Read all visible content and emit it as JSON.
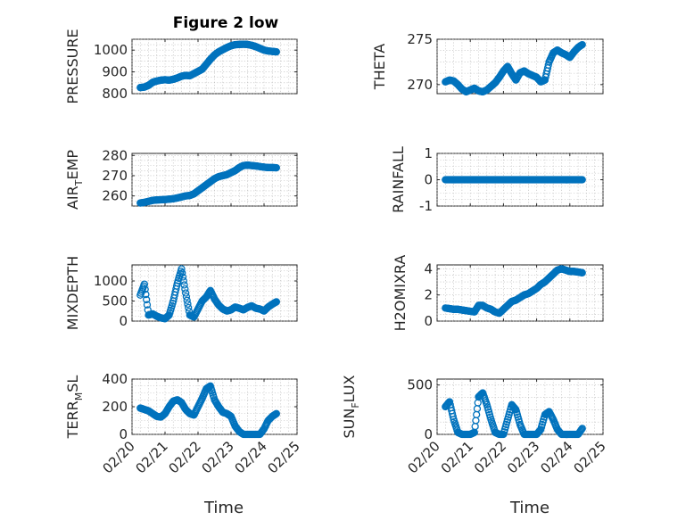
{
  "figure": {
    "title": "Figure 2 low",
    "xlabel": "Time",
    "marker_color": "#0072BD"
  },
  "chart_data": [
    {
      "type": "scatter",
      "panel": "pressure",
      "ylabel": "PRESSURE",
      "xlim": [
        "02/20",
        "02/25"
      ],
      "ylim": [
        800,
        1050
      ],
      "yticks": [
        800,
        900,
        1000
      ],
      "xticklabels_shown": false,
      "grid": true,
      "minor_grid": true,
      "title": "Figure 2 low",
      "x": [
        "02/20 06:00",
        "02/20 09:00",
        "02/20 12:00",
        "02/20 15:00",
        "02/20 18:00",
        "02/20 21:00",
        "02/21 00:00",
        "02/21 03:00",
        "02/21 06:00",
        "02/21 09:00",
        "02/21 12:00",
        "02/21 15:00",
        "02/21 18:00",
        "02/21 21:00",
        "02/22 00:00",
        "02/22 03:00",
        "02/22 06:00",
        "02/22 09:00",
        "02/22 12:00",
        "02/22 15:00",
        "02/22 18:00",
        "02/22 21:00",
        "02/23 00:00",
        "02/23 03:00",
        "02/23 06:00",
        "02/23 09:00",
        "02/23 12:00",
        "02/23 15:00",
        "02/23 18:00",
        "02/23 21:00",
        "02/24 00:00",
        "02/24 03:00",
        "02/24 06:00",
        "02/24 09:00"
      ],
      "y": [
        828,
        830,
        838,
        852,
        858,
        862,
        864,
        862,
        866,
        872,
        880,
        884,
        882,
        892,
        902,
        912,
        935,
        958,
        978,
        992,
        1002,
        1012,
        1020,
        1025,
        1026,
        1027,
        1026,
        1022,
        1016,
        1008,
        1000,
        996,
        994,
        992
      ]
    },
    {
      "type": "scatter",
      "panel": "theta",
      "ylabel": "THETA",
      "xlim": [
        "02/20",
        "02/25"
      ],
      "ylim": [
        269,
        275
      ],
      "yticks": [
        270,
        275
      ],
      "xticklabels_shown": false,
      "grid": true,
      "minor_grid": true,
      "x": [
        "02/20 06:00",
        "02/20 09:00",
        "02/20 12:00",
        "02/20 15:00",
        "02/20 18:00",
        "02/20 21:00",
        "02/21 00:00",
        "02/21 03:00",
        "02/21 06:00",
        "02/21 09:00",
        "02/21 12:00",
        "02/21 15:00",
        "02/21 18:00",
        "02/21 21:00",
        "02/22 00:00",
        "02/22 03:00",
        "02/22 06:00",
        "02/22 09:00",
        "02/22 12:00",
        "02/22 15:00",
        "02/22 18:00",
        "02/22 21:00",
        "02/23 00:00",
        "02/23 03:00",
        "02/23 06:00",
        "02/23 09:00",
        "02/23 12:00",
        "02/23 15:00",
        "02/23 18:00",
        "02/23 21:00",
        "02/24 00:00",
        "02/24 03:00",
        "02/24 06:00",
        "02/24 09:00"
      ],
      "y": [
        270.3,
        270.5,
        270.4,
        270.0,
        269.5,
        269.2,
        269.4,
        269.6,
        269.3,
        269.2,
        269.4,
        269.8,
        270.2,
        270.8,
        271.5,
        272.0,
        271.2,
        270.5,
        271.3,
        271.5,
        271.2,
        271.0,
        270.8,
        270.3,
        270.5,
        272.5,
        273.5,
        273.8,
        273.5,
        273.3,
        273.0,
        273.6,
        274.1,
        274.4
      ]
    },
    {
      "type": "scatter",
      "panel": "air_temp",
      "ylabel": "AIR_TEMP",
      "xlim": [
        "02/20",
        "02/25"
      ],
      "ylim": [
        255,
        281
      ],
      "yticks": [
        260,
        270,
        280
      ],
      "xticklabels_shown": false,
      "grid": true,
      "minor_grid": true,
      "x": [
        "02/20 06:00",
        "02/20 09:00",
        "02/20 12:00",
        "02/20 15:00",
        "02/20 18:00",
        "02/20 21:00",
        "02/21 00:00",
        "02/21 03:00",
        "02/21 06:00",
        "02/21 09:00",
        "02/21 12:00",
        "02/21 15:00",
        "02/21 18:00",
        "02/21 21:00",
        "02/22 00:00",
        "02/22 03:00",
        "02/22 06:00",
        "02/22 09:00",
        "02/22 12:00",
        "02/22 15:00",
        "02/22 18:00",
        "02/22 21:00",
        "02/23 00:00",
        "02/23 03:00",
        "02/23 06:00",
        "02/23 09:00",
        "02/23 12:00",
        "02/23 15:00",
        "02/23 18:00",
        "02/23 21:00",
        "02/24 00:00",
        "02/24 03:00",
        "02/24 06:00",
        "02/24 09:00"
      ],
      "y": [
        256.5,
        256.8,
        257.3,
        257.8,
        258.0,
        258.1,
        258.2,
        258.4,
        258.6,
        259.0,
        259.5,
        260.0,
        260.2,
        261.0,
        262.5,
        264.0,
        265.5,
        267.0,
        268.5,
        269.5,
        270.0,
        270.5,
        271.5,
        272.5,
        274.0,
        275.0,
        275.2,
        275.0,
        274.8,
        274.5,
        274.2,
        274.0,
        274.0,
        273.9
      ]
    },
    {
      "type": "scatter",
      "panel": "rainfall",
      "ylabel": "RAINFALL",
      "xlim": [
        "02/20",
        "02/25"
      ],
      "ylim": [
        -1,
        1
      ],
      "yticks": [
        -1,
        0,
        1
      ],
      "xticklabels_shown": false,
      "grid": true,
      "minor_grid": true,
      "x": [
        "02/20 06:00",
        "02/20 09:00",
        "02/20 12:00",
        "02/20 15:00",
        "02/20 18:00",
        "02/20 21:00",
        "02/21 00:00",
        "02/21 03:00",
        "02/21 06:00",
        "02/21 09:00",
        "02/21 12:00",
        "02/21 15:00",
        "02/21 18:00",
        "02/21 21:00",
        "02/22 00:00",
        "02/22 03:00",
        "02/22 06:00",
        "02/22 09:00",
        "02/22 12:00",
        "02/22 15:00",
        "02/22 18:00",
        "02/22 21:00",
        "02/23 00:00",
        "02/23 03:00",
        "02/23 06:00",
        "02/23 09:00",
        "02/23 12:00",
        "02/23 15:00",
        "02/23 18:00",
        "02/23 21:00",
        "02/24 00:00",
        "02/24 03:00",
        "02/24 06:00",
        "02/24 09:00"
      ],
      "y": [
        0,
        0,
        0,
        0,
        0,
        0,
        0,
        0,
        0,
        0,
        0,
        0,
        0,
        0,
        0,
        0,
        0,
        0,
        0,
        0,
        0,
        0,
        0,
        0,
        0,
        0,
        0,
        0,
        0,
        0,
        0,
        0,
        0,
        0
      ]
    },
    {
      "type": "scatter",
      "panel": "mixdepth",
      "ylabel": "MIXDEPTH",
      "xlim": [
        "02/20",
        "02/25"
      ],
      "ylim": [
        0,
        1400
      ],
      "yticks": [
        0,
        500,
        1000
      ],
      "xticklabels_shown": false,
      "grid": true,
      "minor_grid": true,
      "x": [
        "02/20 06:00",
        "02/20 09:00",
        "02/20 12:00",
        "02/20 15:00",
        "02/20 18:00",
        "02/20 21:00",
        "02/21 00:00",
        "02/21 03:00",
        "02/21 06:00",
        "02/21 09:00",
        "02/21 12:00",
        "02/21 15:00",
        "02/21 18:00",
        "02/21 21:00",
        "02/22 00:00",
        "02/22 03:00",
        "02/22 06:00",
        "02/22 09:00",
        "02/22 12:00",
        "02/22 15:00",
        "02/22 18:00",
        "02/22 21:00",
        "02/23 00:00",
        "02/23 03:00",
        "02/23 06:00",
        "02/23 09:00",
        "02/23 12:00",
        "02/23 15:00",
        "02/23 18:00",
        "02/23 21:00",
        "02/24 00:00",
        "02/24 03:00",
        "02/24 06:00",
        "02/24 09:00"
      ],
      "y": [
        650,
        920,
        150,
        180,
        120,
        80,
        60,
        150,
        500,
        950,
        1300,
        700,
        150,
        100,
        300,
        500,
        600,
        760,
        550,
        400,
        300,
        250,
        280,
        350,
        320,
        280,
        340,
        380,
        320,
        300,
        250,
        350,
        420,
        480
      ]
    },
    {
      "type": "scatter",
      "panel": "h2omixra",
      "ylabel": "H2OMIXRA",
      "xlim": [
        "02/20",
        "02/25"
      ],
      "ylim": [
        0,
        4.3
      ],
      "yticks": [
        0,
        2,
        4
      ],
      "xticklabels_shown": false,
      "grid": true,
      "minor_grid": true,
      "x": [
        "02/20 06:00",
        "02/20 09:00",
        "02/20 12:00",
        "02/20 15:00",
        "02/20 18:00",
        "02/20 21:00",
        "02/21 00:00",
        "02/21 03:00",
        "02/21 06:00",
        "02/21 09:00",
        "02/21 12:00",
        "02/21 15:00",
        "02/21 18:00",
        "02/21 21:00",
        "02/22 00:00",
        "02/22 03:00",
        "02/22 06:00",
        "02/22 09:00",
        "02/22 12:00",
        "02/22 15:00",
        "02/22 18:00",
        "02/22 21:00",
        "02/23 00:00",
        "02/23 03:00",
        "02/23 06:00",
        "02/23 09:00",
        "02/23 12:00",
        "02/23 15:00",
        "02/23 18:00",
        "02/23 21:00",
        "02/24 00:00",
        "02/24 03:00",
        "02/24 06:00",
        "02/24 09:00"
      ],
      "y": [
        1.0,
        0.95,
        0.9,
        0.9,
        0.85,
        0.8,
        0.75,
        0.7,
        1.2,
        1.2,
        1.0,
        0.9,
        0.7,
        0.6,
        0.9,
        1.2,
        1.5,
        1.6,
        1.8,
        2.0,
        2.1,
        2.3,
        2.5,
        2.8,
        3.0,
        3.3,
        3.6,
        3.9,
        4.0,
        3.9,
        3.8,
        3.8,
        3.75,
        3.7
      ]
    },
    {
      "type": "scatter",
      "panel": "terr_msl",
      "ylabel": "TERR_MSL",
      "xlim": [
        "02/20",
        "02/25"
      ],
      "ylim": [
        0,
        400
      ],
      "yticks": [
        0,
        200,
        400
      ],
      "xticks": [
        "02/20",
        "02/21",
        "02/22",
        "02/23",
        "02/24",
        "02/25"
      ],
      "xticklabels_shown": true,
      "xlabel": "Time",
      "grid": true,
      "minor_grid": true,
      "x": [
        "02/20 06:00",
        "02/20 09:00",
        "02/20 12:00",
        "02/20 15:00",
        "02/20 18:00",
        "02/20 21:00",
        "02/21 00:00",
        "02/21 03:00",
        "02/21 06:00",
        "02/21 09:00",
        "02/21 12:00",
        "02/21 15:00",
        "02/21 18:00",
        "02/21 21:00",
        "02/22 00:00",
        "02/22 03:00",
        "02/22 06:00",
        "02/22 09:00",
        "02/22 12:00",
        "02/22 15:00",
        "02/22 18:00",
        "02/22 21:00",
        "02/23 00:00",
        "02/23 03:00",
        "02/23 06:00",
        "02/23 09:00",
        "02/23 12:00",
        "02/23 15:00",
        "02/23 18:00",
        "02/23 21:00",
        "02/24 00:00",
        "02/24 03:00",
        "02/24 06:00",
        "02/24 09:00"
      ],
      "y": [
        190,
        180,
        170,
        150,
        130,
        125,
        150,
        200,
        240,
        250,
        230,
        180,
        150,
        140,
        200,
        260,
        330,
        350,
        250,
        200,
        160,
        150,
        130,
        60,
        20,
        0,
        0,
        0,
        0,
        0,
        40,
        100,
        130,
        150
      ]
    },
    {
      "type": "scatter",
      "panel": "sun_flux",
      "ylabel": "SUN_FLUX",
      "xlim": [
        "02/20",
        "02/25"
      ],
      "ylim": [
        0,
        560
      ],
      "yticks": [
        0,
        500
      ],
      "xticks": [
        "02/20",
        "02/21",
        "02/22",
        "02/23",
        "02/24",
        "02/25"
      ],
      "xticklabels_shown": true,
      "xlabel": "Time",
      "grid": true,
      "minor_grid": true,
      "x": [
        "02/20 06:00",
        "02/20 09:00",
        "02/20 12:00",
        "02/20 15:00",
        "02/20 18:00",
        "02/20 21:00",
        "02/21 00:00",
        "02/21 03:00",
        "02/21 06:00",
        "02/21 09:00",
        "02/21 12:00",
        "02/21 15:00",
        "02/21 18:00",
        "02/21 21:00",
        "02/22 00:00",
        "02/22 03:00",
        "02/22 06:00",
        "02/22 09:00",
        "02/22 12:00",
        "02/22 15:00",
        "02/22 18:00",
        "02/22 21:00",
        "02/23 00:00",
        "02/23 03:00",
        "02/23 06:00",
        "02/23 09:00",
        "02/23 12:00",
        "02/23 15:00",
        "02/23 18:00",
        "02/23 21:00",
        "02/24 00:00",
        "02/24 03:00",
        "02/24 06:00",
        "02/24 09:00"
      ],
      "y": [
        280,
        330,
        150,
        20,
        0,
        0,
        0,
        20,
        380,
        420,
        300,
        150,
        20,
        0,
        0,
        150,
        300,
        250,
        100,
        0,
        0,
        0,
        0,
        50,
        200,
        230,
        150,
        50,
        0,
        0,
        0,
        0,
        0,
        60
      ]
    }
  ]
}
